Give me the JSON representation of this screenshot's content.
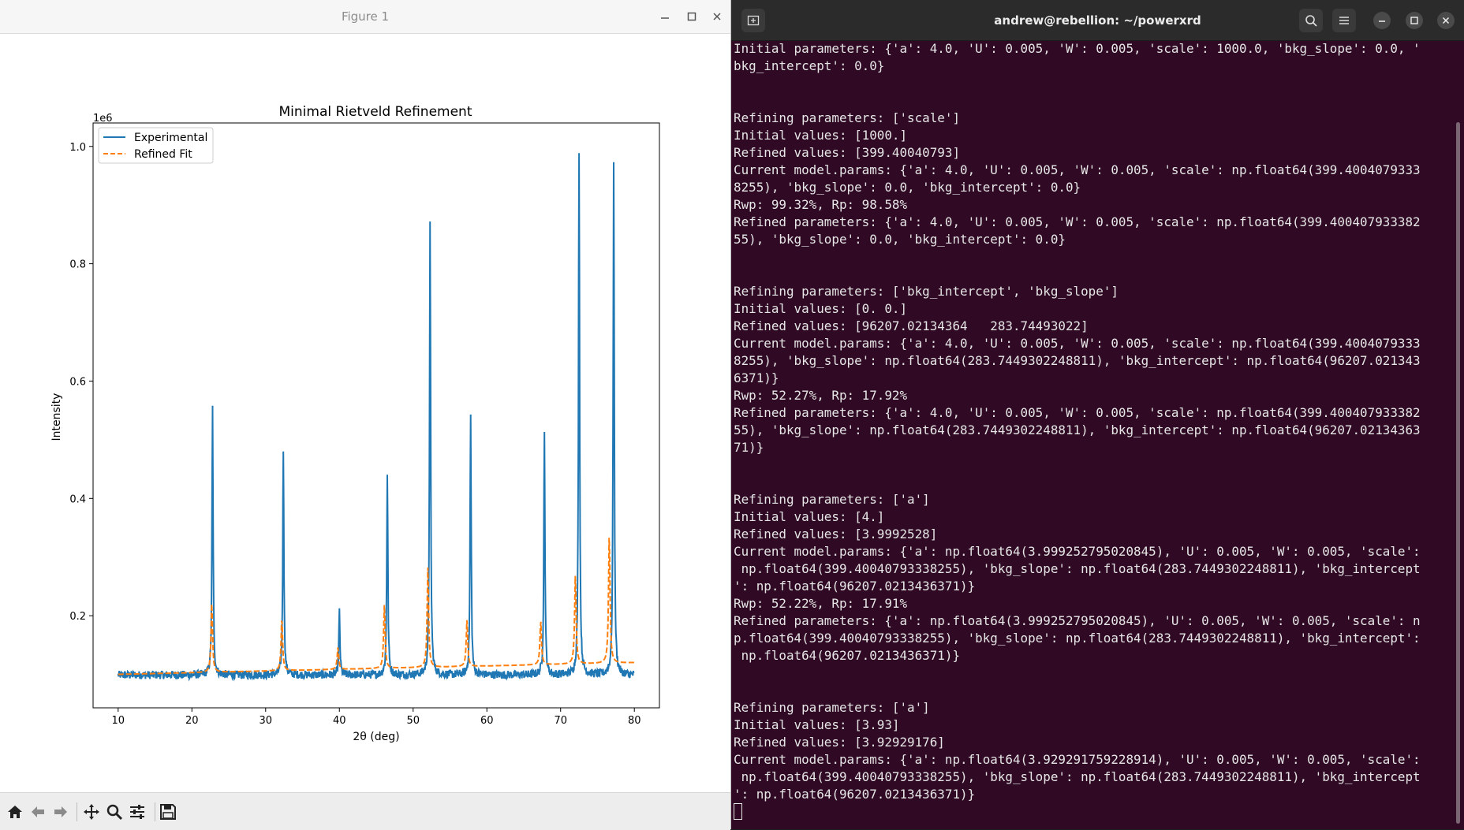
{
  "figure": {
    "title": "Figure 1",
    "toolbar_icons": [
      "home-icon",
      "back-arrow-icon",
      "forward-arrow-icon",
      "pan-icon",
      "zoom-icon",
      "configure-subplots-icon",
      "save-icon"
    ]
  },
  "chart_data": {
    "type": "line",
    "title": "Minimal Rietveld Refinement",
    "xlabel": "2θ (deg)",
    "ylabel": "Intensity",
    "y_offset_label": "1e6",
    "xlim": [
      6.6,
      83.4
    ],
    "ylim": [
      0.043,
      1.04
    ],
    "xticks": [
      10,
      20,
      30,
      40,
      50,
      60,
      70,
      80
    ],
    "xtick_labels": [
      "10",
      "20",
      "30",
      "40",
      "50",
      "60",
      "70",
      "80"
    ],
    "yticks": [
      0.2,
      0.4,
      0.6,
      0.8,
      1.0
    ],
    "ytick_labels": [
      "0.2",
      "0.4",
      "0.6",
      "0.8",
      "1.0"
    ],
    "legend_position": "top-left",
    "series": [
      {
        "name": "Experimental",
        "color": "#1f77b4",
        "style": "solid",
        "baseline": 0.099,
        "noise": 0.007,
        "peaks": [
          [
            22.8,
            0.555
          ],
          [
            32.4,
            0.483
          ],
          [
            40.0,
            0.207
          ],
          [
            46.5,
            0.443
          ],
          [
            52.3,
            0.868
          ],
          [
            57.8,
            0.541
          ],
          [
            67.8,
            0.518
          ],
          [
            72.5,
            0.993
          ],
          [
            77.2,
            0.978
          ]
        ]
      },
      {
        "name": "Refined Fit",
        "color": "#ff7f0e",
        "style": "dashed",
        "background": [
          [
            10,
            0.1
          ],
          [
            80,
            0.12
          ]
        ],
        "peaks": [
          [
            22.7,
            0.224
          ],
          [
            32.2,
            0.198
          ],
          [
            39.8,
            0.146
          ],
          [
            46.1,
            0.219
          ],
          [
            52.0,
            0.282
          ],
          [
            57.3,
            0.193
          ],
          [
            67.3,
            0.192
          ],
          [
            72.0,
            0.269
          ],
          [
            76.6,
            0.34
          ]
        ]
      }
    ]
  },
  "terminal": {
    "title": "andrew@rebellion: ~/powerxrd",
    "lines": [
      "Initial parameters: {'a': 4.0, 'U': 0.005, 'W': 0.005, 'scale': 1000.0, 'bkg_slope': 0.0, '",
      "bkg_intercept': 0.0}",
      "",
      "",
      "Refining parameters: ['scale']",
      "Initial values: [1000.]",
      "Refined values: [399.40040793]",
      "Current model.params: {'a': 4.0, 'U': 0.005, 'W': 0.005, 'scale': np.float64(399.4004079333",
      "8255), 'bkg_slope': 0.0, 'bkg_intercept': 0.0}",
      "Rwp: 99.32%, Rp: 98.58%",
      "Refined parameters: {'a': 4.0, 'U': 0.005, 'W': 0.005, 'scale': np.float64(399.400407933382",
      "55), 'bkg_slope': 0.0, 'bkg_intercept': 0.0}",
      "",
      "",
      "Refining parameters: ['bkg_intercept', 'bkg_slope']",
      "Initial values: [0. 0.]",
      "Refined values: [96207.02134364   283.74493022]",
      "Current model.params: {'a': 4.0, 'U': 0.005, 'W': 0.005, 'scale': np.float64(399.4004079333",
      "8255), 'bkg_slope': np.float64(283.7449302248811), 'bkg_intercept': np.float64(96207.021343",
      "6371)}",
      "Rwp: 52.27%, Rp: 17.92%",
      "Refined parameters: {'a': 4.0, 'U': 0.005, 'W': 0.005, 'scale': np.float64(399.400407933382",
      "55), 'bkg_slope': np.float64(283.7449302248811), 'bkg_intercept': np.float64(96207.02134363",
      "71)}",
      "",
      "",
      "Refining parameters: ['a']",
      "Initial values: [4.]",
      "Refined values: [3.9992528]",
      "Current model.params: {'a': np.float64(3.999252795020845), 'U': 0.005, 'W': 0.005, 'scale':",
      " np.float64(399.40040793338255), 'bkg_slope': np.float64(283.7449302248811), 'bkg_intercept",
      "': np.float64(96207.0213436371)}",
      "Rwp: 52.22%, Rp: 17.91%",
      "Refined parameters: {'a': np.float64(3.999252795020845), 'U': 0.005, 'W': 0.005, 'scale': n",
      "p.float64(399.40040793338255), 'bkg_slope': np.float64(283.7449302248811), 'bkg_intercept':",
      " np.float64(96207.0213436371)}",
      "",
      "",
      "Refining parameters: ['a']",
      "Initial values: [3.93]",
      "Refined values: [3.92929176]",
      "Current model.params: {'a': np.float64(3.929291759228914), 'U': 0.005, 'W': 0.005, 'scale':",
      " np.float64(399.40040793338255), 'bkg_slope': np.float64(283.7449302248811), 'bkg_intercept",
      "': np.float64(96207.0213436371)}"
    ]
  }
}
